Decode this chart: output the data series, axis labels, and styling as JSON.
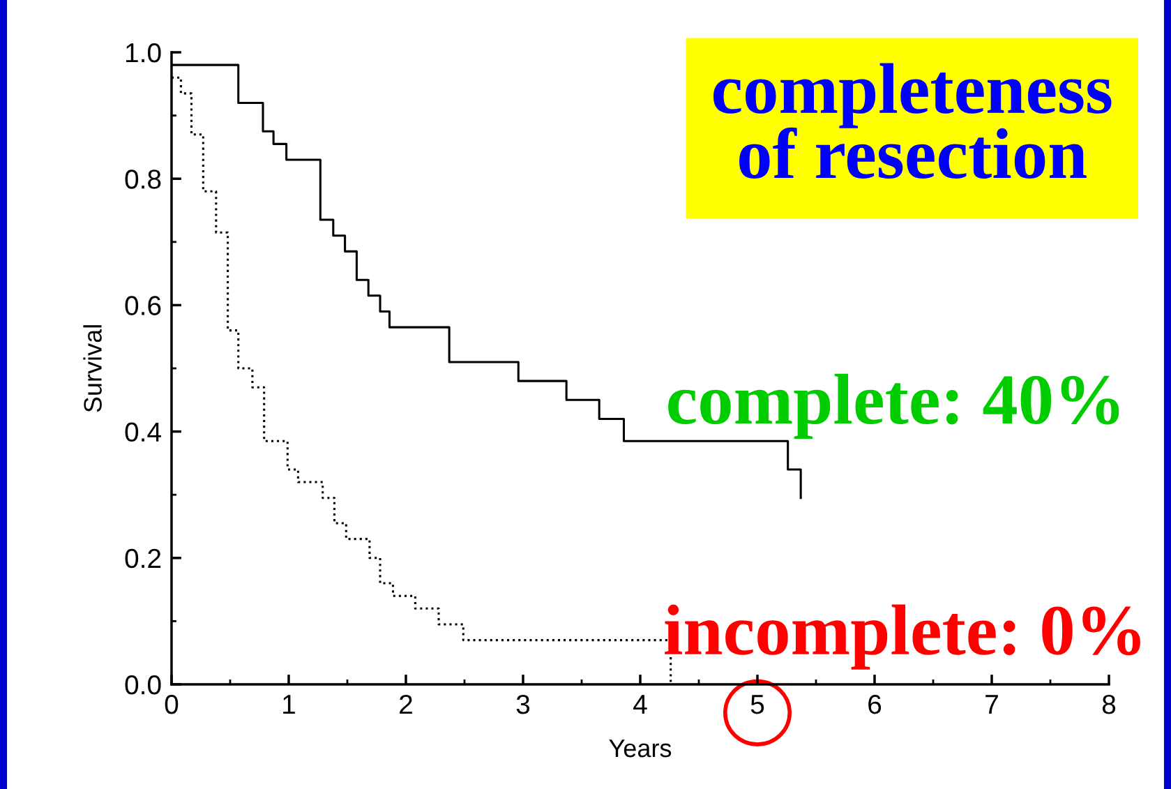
{
  "chart_data": {
    "type": "step",
    "xlabel": "Years",
    "ylabel": "Survival",
    "xlim": [
      0,
      8
    ],
    "ylim": [
      0,
      1.0
    ],
    "xticks": [
      0,
      1,
      2,
      3,
      4,
      5,
      6,
      7,
      8
    ],
    "yticks": [
      {
        "value": 0,
        "label": "0.0"
      },
      0.2,
      0.4,
      0.6,
      0.8,
      {
        "value": 1,
        "label": "1.0"
      }
    ],
    "grid": false,
    "legend": false,
    "series": [
      {
        "color": "#000000",
        "line_style": "solid",
        "x": [
          0,
          0.57,
          0.78,
          0.87,
          0.98,
          1.27,
          1.38,
          1.48,
          1.58,
          1.68,
          1.78,
          1.86,
          2.37,
          2.96,
          3.37,
          3.65,
          3.86,
          5.26,
          5.37
        ],
        "values": [
          0.98,
          0.92,
          0.875,
          0.855,
          0.83,
          0.735,
          0.71,
          0.685,
          0.64,
          0.615,
          0.59,
          0.565,
          0.51,
          0.48,
          0.45,
          0.42,
          0.385,
          0.34,
          0.295
        ]
      },
      {
        "color": "#000000",
        "line_style": "dotted",
        "x": [
          0,
          0.08,
          0.17,
          0.27,
          0.38,
          0.48,
          0.57,
          0.69,
          0.79,
          0.99,
          1.08,
          1.29,
          1.39,
          1.49,
          1.69,
          1.78,
          1.89,
          2.08,
          2.28,
          2.49,
          4.26
        ],
        "values": [
          0.96,
          0.935,
          0.87,
          0.78,
          0.715,
          0.56,
          0.5,
          0.47,
          0.385,
          0.34,
          0.32,
          0.295,
          0.255,
          0.23,
          0.2,
          0.16,
          0.14,
          0.12,
          0.095,
          0.07,
          0
        ]
      }
    ],
    "annotations": [
      "completeness\nof resection",
      "complete: 40%",
      "incomplete: 0%"
    ]
  }
}
